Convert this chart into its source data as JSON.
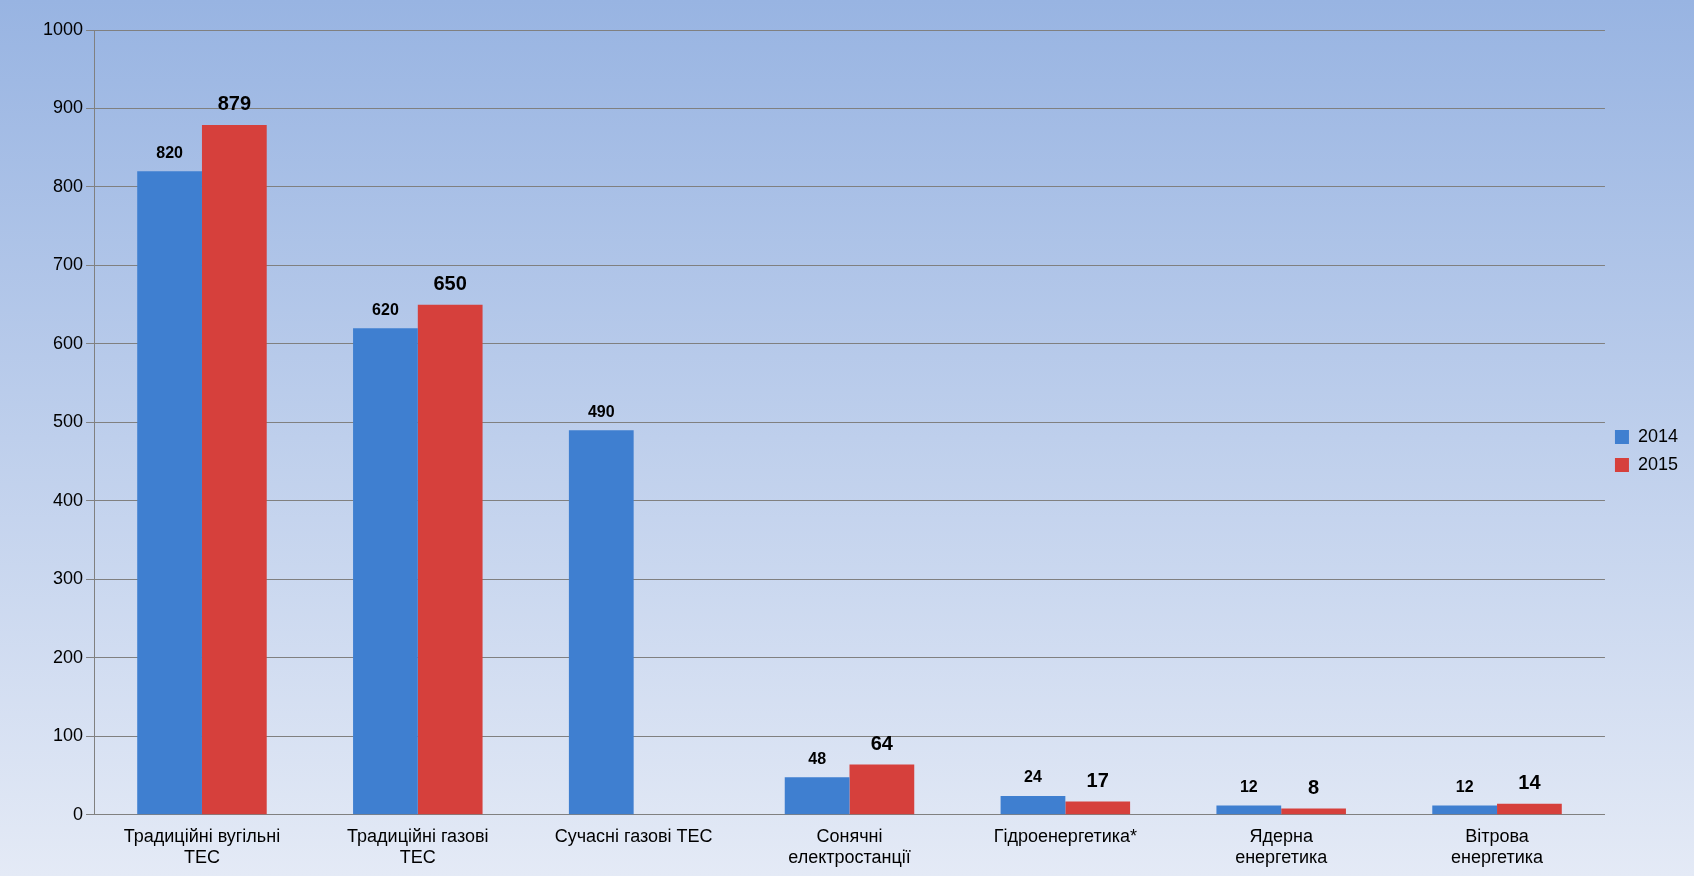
{
  "chart_data": {
    "type": "bar",
    "categories": [
      "Традиційні вугільні ТЕС",
      "Традиційні газові ТЕС",
      "Сучасні газові ТЕС",
      "Сонячні електростанції",
      "Гідроенергетика*",
      "Ядерна енергетика",
      "Вітрова енергетика"
    ],
    "series": [
      {
        "name": "2014",
        "color": "#3f7fd0",
        "values": [
          820,
          620,
          490,
          48,
          24,
          12,
          12
        ]
      },
      {
        "name": "2015",
        "color": "#d6403c",
        "values": [
          879,
          650,
          null,
          64,
          17,
          8,
          14
        ]
      }
    ],
    "ylim": [
      0,
      1000
    ],
    "yticks": [
      0,
      100,
      200,
      300,
      400,
      500,
      600,
      700,
      800,
      900,
      1000
    ],
    "grid": "y",
    "legend": "right",
    "data_labels": true
  }
}
